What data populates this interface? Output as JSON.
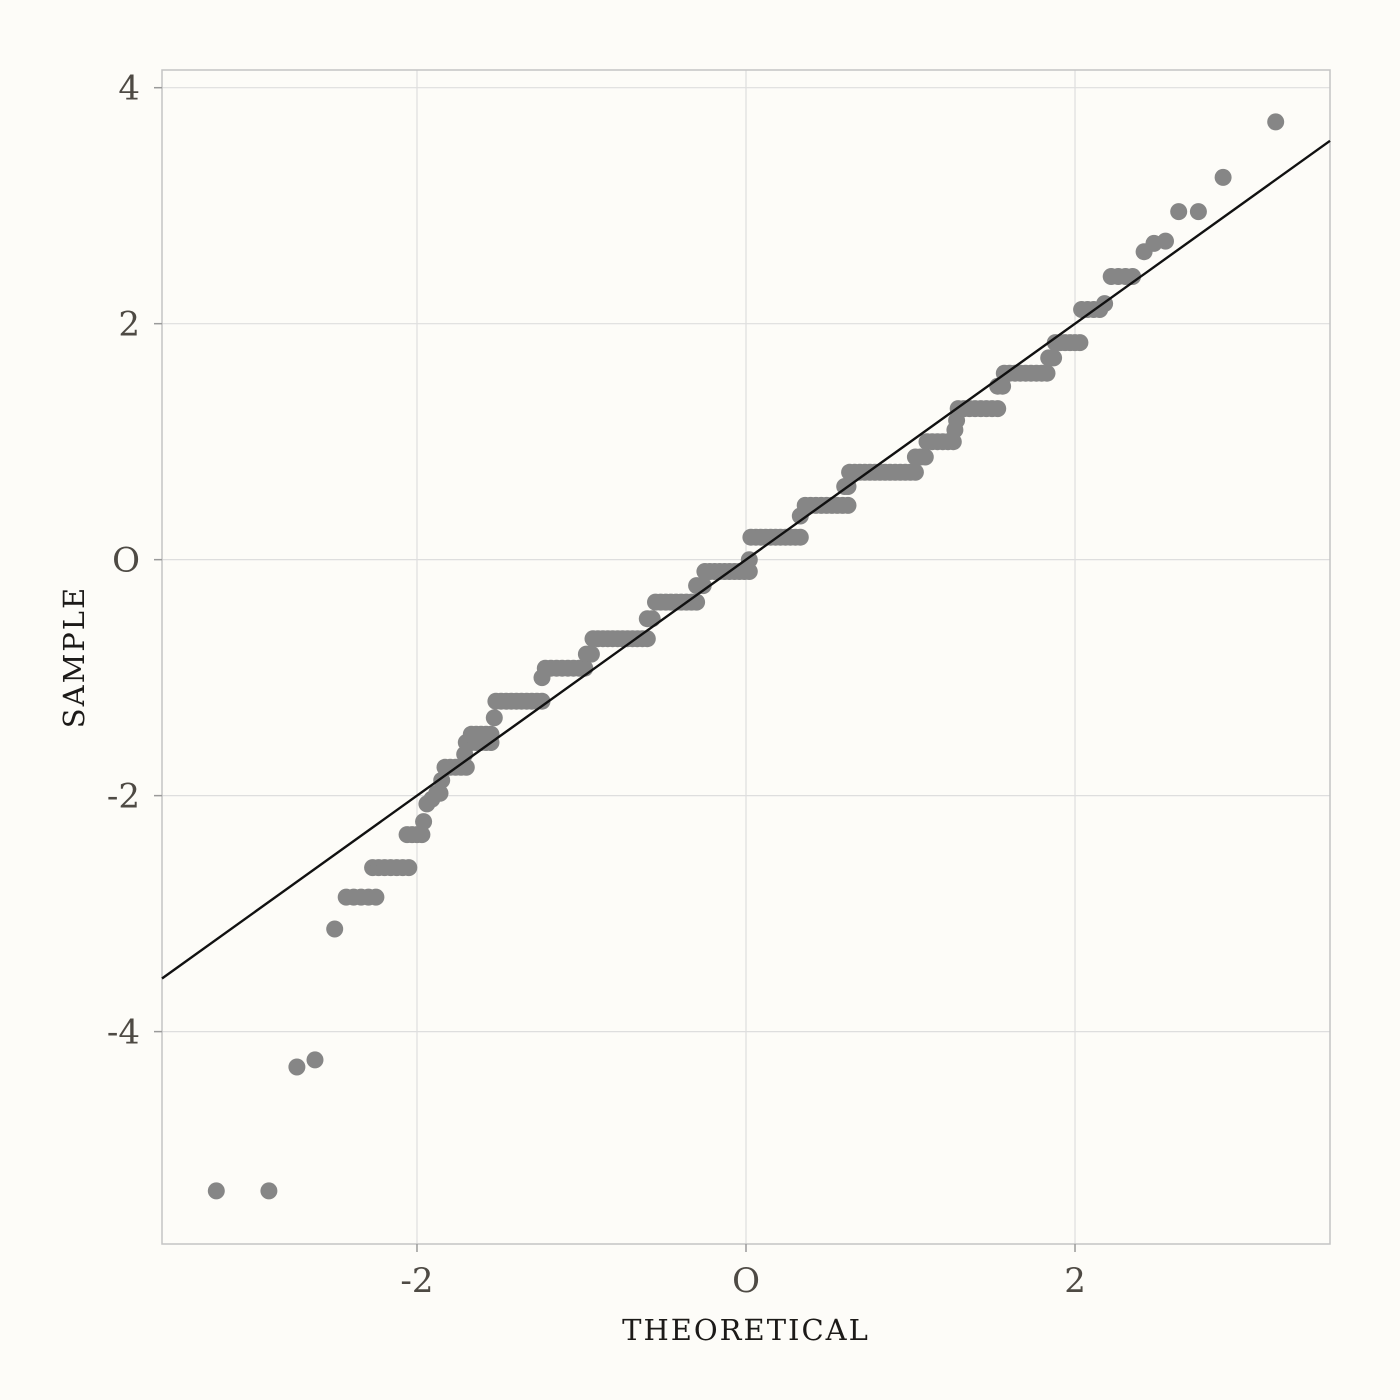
{
  "chart_data": {
    "type": "scatter",
    "title": "",
    "xlabel": "THEORETICAL",
    "ylabel": "SAMPLE",
    "xlim": [
      -3.55,
      3.55
    ],
    "ylim": [
      -5.8,
      4.15
    ],
    "x_ticks": [
      -2,
      0,
      2
    ],
    "x_tick_labels": [
      "-2",
      "O",
      "2"
    ],
    "y_ticks": [
      -4,
      -2,
      0,
      2,
      4
    ],
    "y_tick_labels": [
      "-4",
      "-2",
      "O",
      "2",
      "4"
    ],
    "grid": true,
    "legend": "none",
    "colors": {
      "points": "#868686",
      "line": "#111111",
      "grid": "#dedede",
      "frame": "#c4c4c4",
      "background": "#fdfcf8"
    },
    "reference_line": {
      "intercept": 0.0,
      "slope": 1.0
    },
    "runs": [
      {
        "y": -5.35,
        "x0": -3.22,
        "x1": -3.22,
        "n": 1
      },
      {
        "y": -5.35,
        "x0": -2.9,
        "x1": -2.9,
        "n": 1
      },
      {
        "y": -4.3,
        "x0": -2.73,
        "x1": -2.73,
        "n": 1
      },
      {
        "y": -4.24,
        "x0": -2.62,
        "x1": -2.62,
        "n": 1
      },
      {
        "y": -3.13,
        "x0": -2.5,
        "x1": -2.5,
        "n": 1
      },
      {
        "y": -2.86,
        "x0": -2.43,
        "x1": -2.25,
        "n": 5
      },
      {
        "y": -2.61,
        "x0": -2.27,
        "x1": -2.05,
        "n": 7
      },
      {
        "y": -2.33,
        "x0": -2.06,
        "x1": -1.97,
        "n": 4
      },
      {
        "y": -2.22,
        "x0": -1.96,
        "x1": -1.96,
        "n": 1
      },
      {
        "y": -2.07,
        "x0": -1.94,
        "x1": -1.94,
        "n": 1
      },
      {
        "y": -2.03,
        "x0": -1.91,
        "x1": -1.91,
        "n": 1
      },
      {
        "y": -1.98,
        "x0": -1.88,
        "x1": -1.86,
        "n": 2
      },
      {
        "y": -1.87,
        "x0": -1.85,
        "x1": -1.85,
        "n": 1
      },
      {
        "y": -1.76,
        "x0": -1.83,
        "x1": -1.7,
        "n": 5
      },
      {
        "y": -1.65,
        "x0": -1.71,
        "x1": -1.71,
        "n": 1
      },
      {
        "y": -1.55,
        "x0": -1.7,
        "x1": -1.55,
        "n": 6
      },
      {
        "y": -1.48,
        "x0": -1.67,
        "x1": -1.55,
        "n": 5
      },
      {
        "y": -1.34,
        "x0": -1.53,
        "x1": -1.53,
        "n": 1
      },
      {
        "y": -1.2,
        "x0": -1.52,
        "x1": -1.24,
        "n": 10
      },
      {
        "y": -1.0,
        "x0": -1.24,
        "x1": -1.24,
        "n": 1
      },
      {
        "y": -0.92,
        "x0": -1.22,
        "x1": -0.98,
        "n": 8
      },
      {
        "y": -0.8,
        "x0": -0.97,
        "x1": -0.94,
        "n": 2
      },
      {
        "y": -0.67,
        "x0": -0.93,
        "x1": -0.6,
        "n": 12
      },
      {
        "y": -0.5,
        "x0": -0.6,
        "x1": -0.57,
        "n": 2
      },
      {
        "y": -0.36,
        "x0": -0.55,
        "x1": -0.3,
        "n": 9
      },
      {
        "y": -0.22,
        "x0": -0.3,
        "x1": -0.26,
        "n": 2
      },
      {
        "y": -0.1,
        "x0": -0.25,
        "x1": 0.02,
        "n": 10
      },
      {
        "y": 0.0,
        "x0": 0.02,
        "x1": 0.02,
        "n": 1
      },
      {
        "y": 0.19,
        "x0": 0.03,
        "x1": 0.33,
        "n": 11
      },
      {
        "y": 0.37,
        "x0": 0.33,
        "x1": 0.33,
        "n": 1
      },
      {
        "y": 0.46,
        "x0": 0.36,
        "x1": 0.62,
        "n": 9
      },
      {
        "y": 0.62,
        "x0": 0.6,
        "x1": 0.62,
        "n": 2
      },
      {
        "y": 0.74,
        "x0": 0.63,
        "x1": 1.03,
        "n": 14
      },
      {
        "y": 0.87,
        "x0": 1.03,
        "x1": 1.09,
        "n": 3
      },
      {
        "y": 1.0,
        "x0": 1.1,
        "x1": 1.26,
        "n": 6
      },
      {
        "y": 1.1,
        "x0": 1.27,
        "x1": 1.27,
        "n": 1
      },
      {
        "y": 1.18,
        "x0": 1.28,
        "x1": 1.28,
        "n": 1
      },
      {
        "y": 1.28,
        "x0": 1.29,
        "x1": 1.53,
        "n": 8
      },
      {
        "y": 1.47,
        "x0": 1.53,
        "x1": 1.56,
        "n": 2
      },
      {
        "y": 1.58,
        "x0": 1.57,
        "x1": 1.83,
        "n": 9
      },
      {
        "y": 1.71,
        "x0": 1.84,
        "x1": 1.87,
        "n": 2
      },
      {
        "y": 1.84,
        "x0": 1.88,
        "x1": 2.03,
        "n": 6
      },
      {
        "y": 2.12,
        "x0": 2.04,
        "x1": 2.15,
        "n": 4
      },
      {
        "y": 2.17,
        "x0": 2.18,
        "x1": 2.18,
        "n": 1
      },
      {
        "y": 2.4,
        "x0": 2.22,
        "x1": 2.35,
        "n": 4
      },
      {
        "y": 2.61,
        "x0": 2.42,
        "x1": 2.42,
        "n": 1
      },
      {
        "y": 2.68,
        "x0": 2.48,
        "x1": 2.48,
        "n": 1
      },
      {
        "y": 2.7,
        "x0": 2.55,
        "x1": 2.55,
        "n": 1
      },
      {
        "y": 2.95,
        "x0": 2.63,
        "x1": 2.63,
        "n": 1
      },
      {
        "y": 2.95,
        "x0": 2.75,
        "x1": 2.75,
        "n": 1
      },
      {
        "y": 3.24,
        "x0": 2.9,
        "x1": 2.9,
        "n": 1
      },
      {
        "y": 3.71,
        "x0": 3.22,
        "x1": 3.22,
        "n": 1
      }
    ]
  }
}
